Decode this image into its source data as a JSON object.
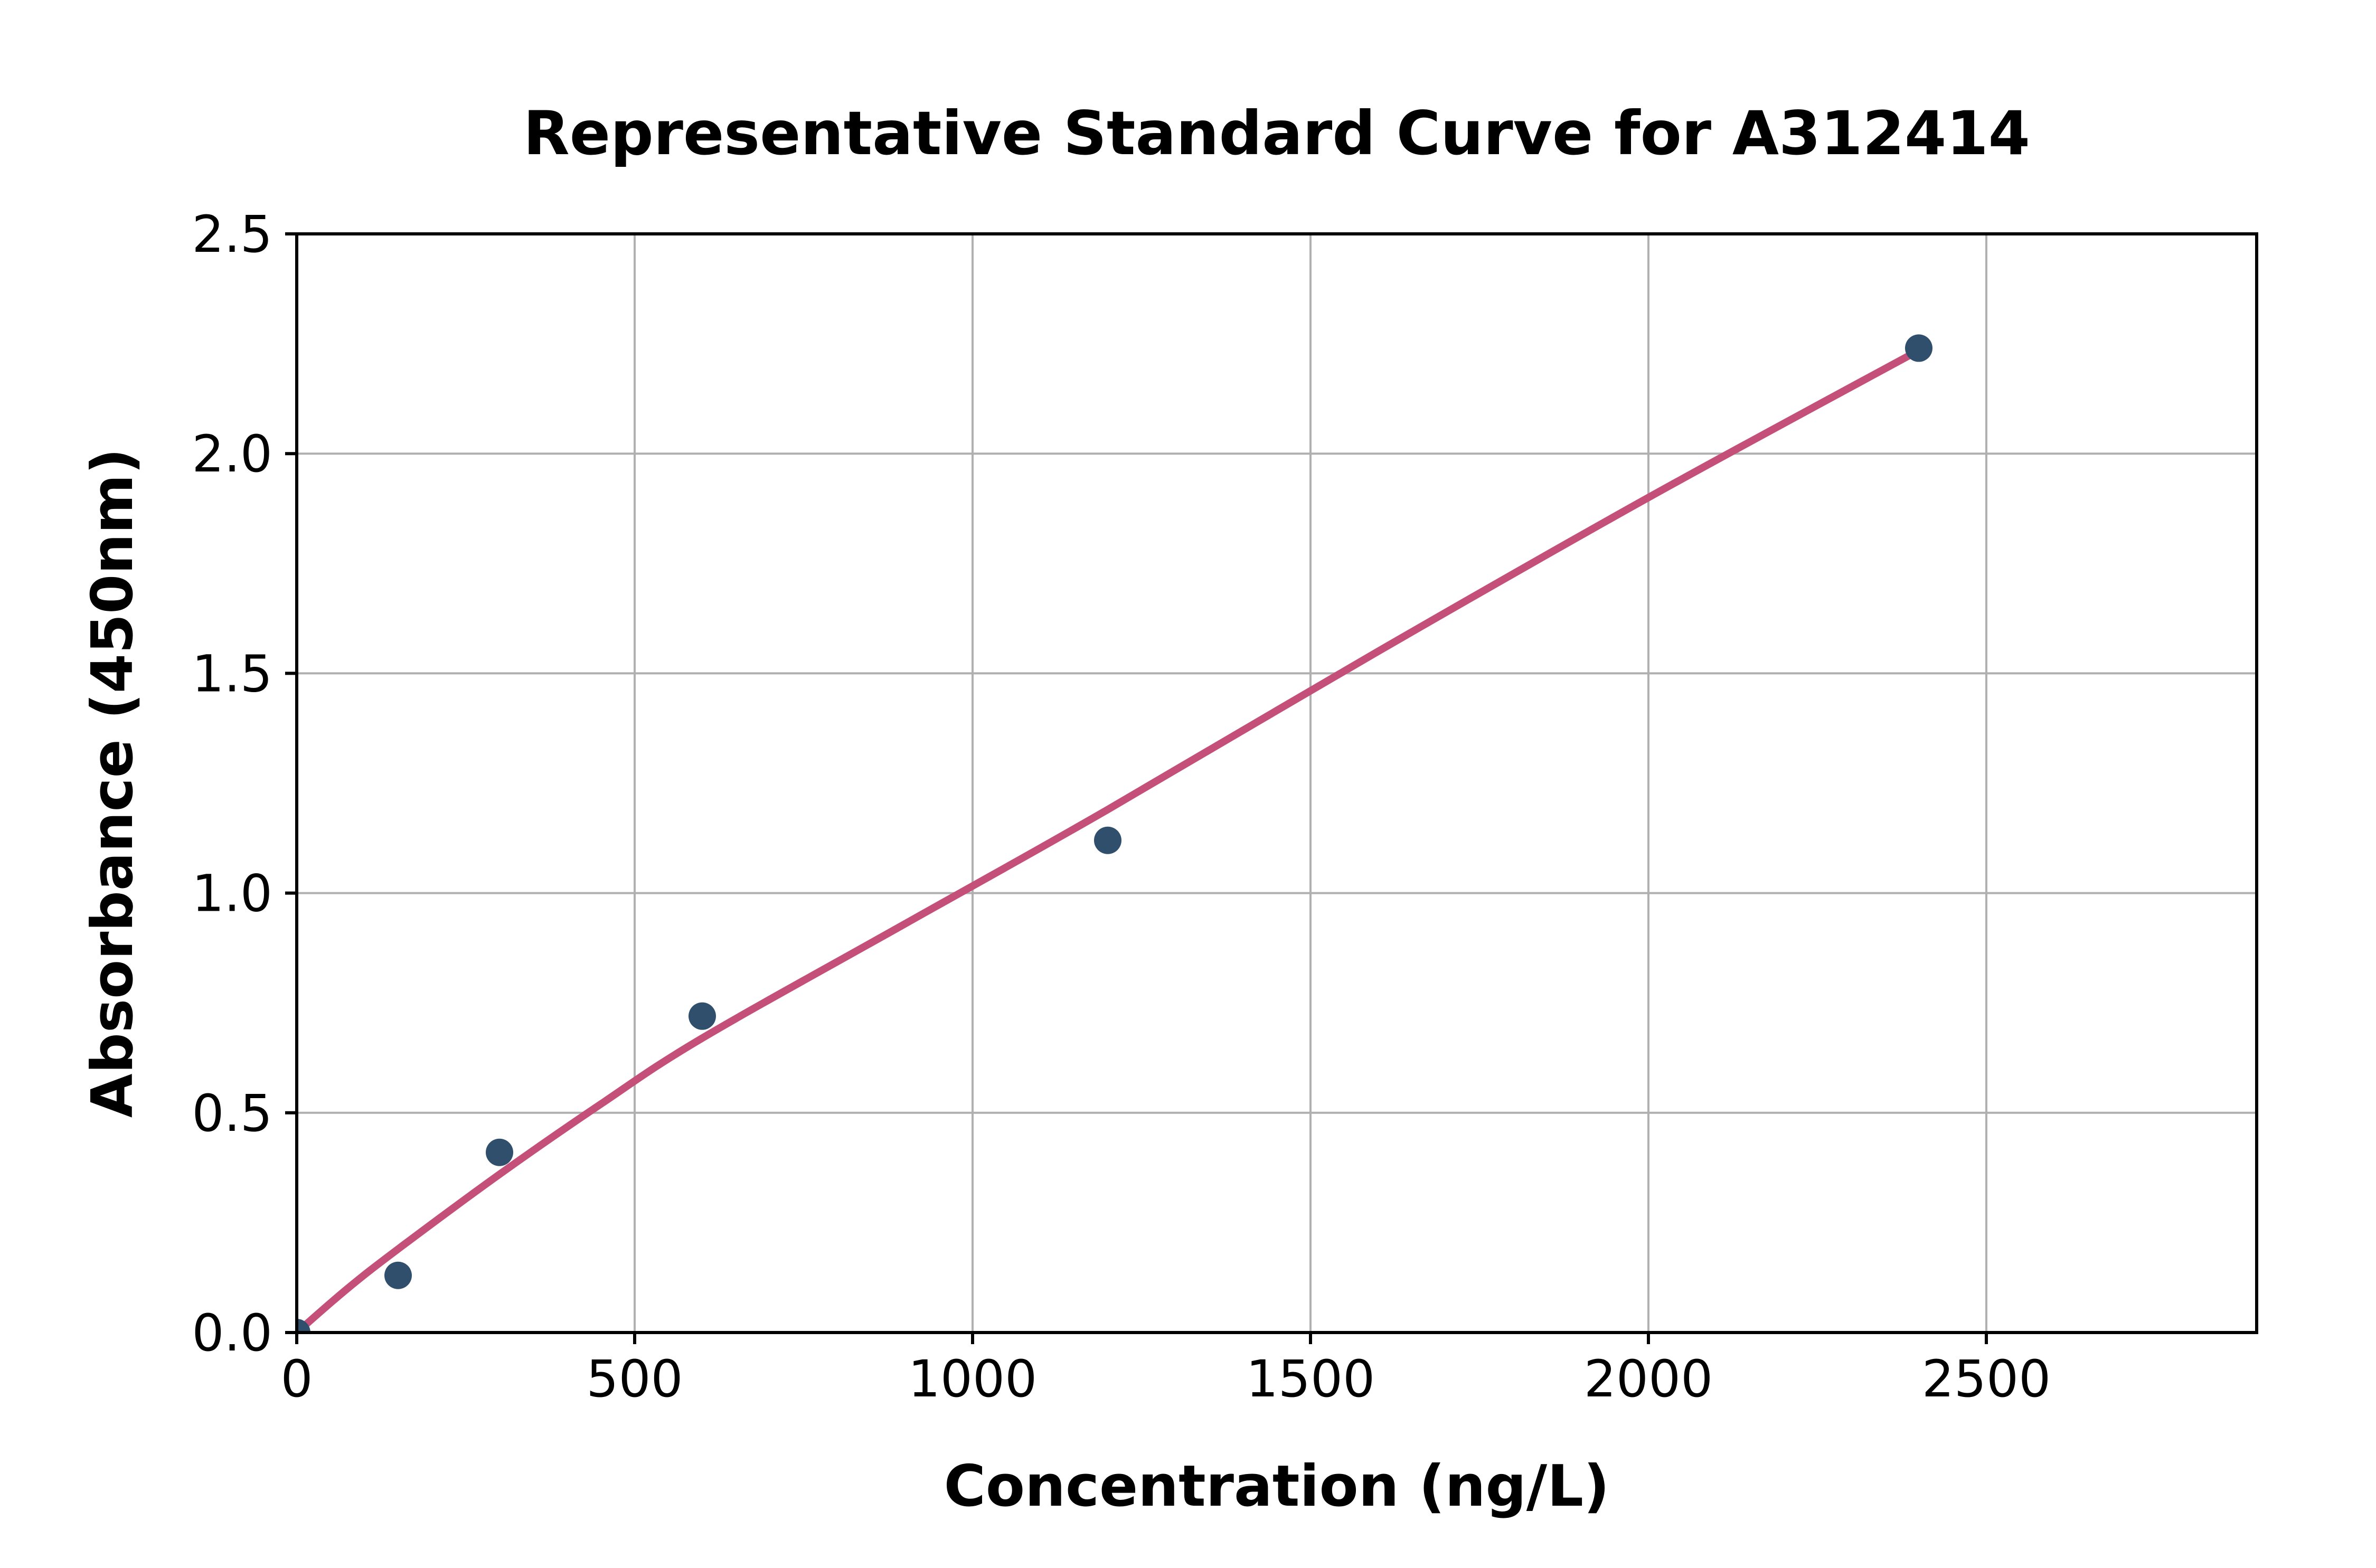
{
  "chart_data": {
    "type": "scatter",
    "title": "Representative Standard Curve for A312414",
    "xlabel": "Concentration (ng/L)",
    "ylabel": "Absorbance (450nm)",
    "xlim": [
      0,
      2900
    ],
    "ylim": [
      0,
      2.5
    ],
    "x_ticks": [
      0,
      500,
      1000,
      1500,
      2000,
      2500
    ],
    "y_ticks": [
      0.0,
      0.5,
      1.0,
      1.5,
      2.0,
      2.5
    ],
    "grid": true,
    "legend": "none",
    "series": [
      {
        "name": "standard-points",
        "type": "scatter",
        "color": "#2F4F6C",
        "points": [
          [
            0,
            0.0
          ],
          [
            150,
            0.13
          ],
          [
            300,
            0.41
          ],
          [
            600,
            0.72
          ],
          [
            1200,
            1.12
          ],
          [
            2400,
            2.24
          ]
        ]
      },
      {
        "name": "fitted-curve",
        "type": "line",
        "color": "#C4507A",
        "points": [
          [
            0,
            0.0
          ],
          [
            75,
            0.1
          ],
          [
            150,
            0.19
          ],
          [
            300,
            0.36
          ],
          [
            450,
            0.52
          ],
          [
            600,
            0.67
          ],
          [
            900,
            0.93
          ],
          [
            1200,
            1.19
          ],
          [
            1600,
            1.55
          ],
          [
            2000,
            1.9
          ],
          [
            2400,
            2.235
          ]
        ]
      }
    ],
    "colors": {
      "point": "#2F4F6C",
      "curve": "#C4507A",
      "grid": "#B0B0B0",
      "axis": "#000000",
      "text": "#000000",
      "background": "#FFFFFF"
    }
  }
}
